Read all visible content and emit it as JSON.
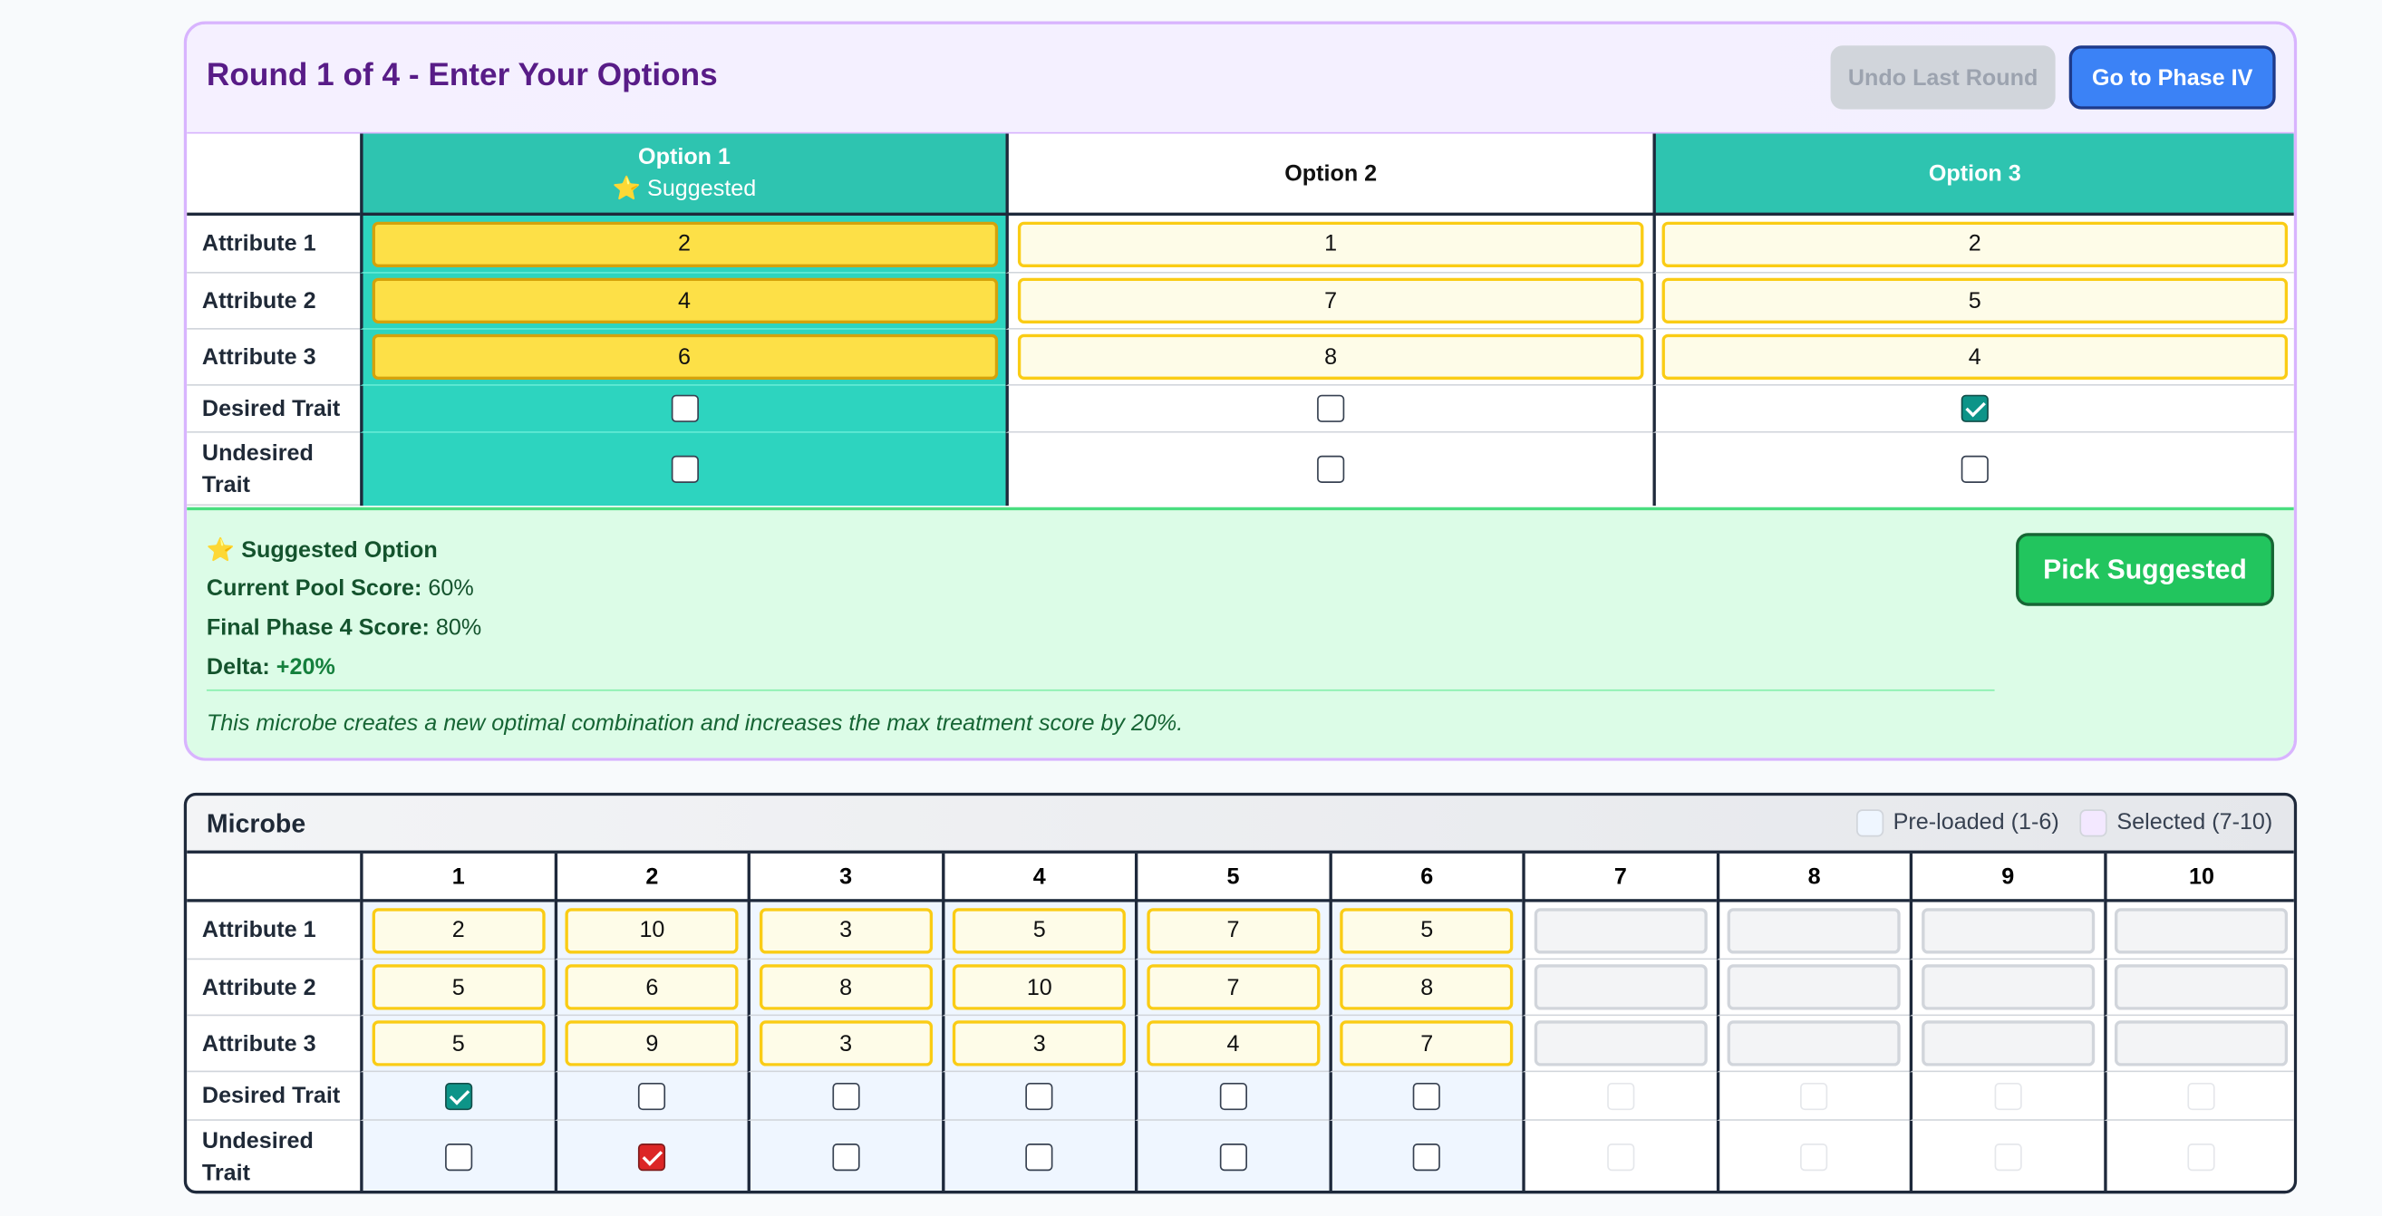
{
  "header": {
    "title": "Round 1 of 4 - Enter Your Options",
    "undo_button": "Undo Last Round",
    "next_button": "Go to Phase IV"
  },
  "options_table": {
    "row_labels": [
      "Attribute 1",
      "Attribute 2",
      "Attribute 3",
      "Desired Trait",
      "Undesired Trait"
    ],
    "options": [
      {
        "name": "Option 1",
        "badge": "⭐ Suggested",
        "header_color": "#2ec4b0",
        "body_color": "#2dd4bf",
        "input_color": "#fde047",
        "values": [
          2,
          4,
          6
        ],
        "desired": false,
        "undesired": false
      },
      {
        "name": "Option 2",
        "header_color": "#ffffff",
        "body_color": "#ffffff",
        "input_color": "#fefce8",
        "values": [
          1,
          7,
          8
        ],
        "desired": false,
        "undesired": false
      },
      {
        "name": "Option 3",
        "header_color": "#2ec4b0",
        "body_color": "#ffffff",
        "input_color": "#fefce8",
        "values": [
          2,
          5,
          4
        ],
        "desired": true,
        "undesired": false
      }
    ]
  },
  "suggestion": {
    "title": "⭐ Suggested Option",
    "lines": [
      {
        "label": "Current Pool Score:",
        "value": "60%"
      },
      {
        "label": "Final Phase 4 Score:",
        "value": "80%"
      },
      {
        "label": "Delta:",
        "value": "+20%"
      }
    ],
    "note": "This microbe creates a new optimal combination and increases the max treatment score by 20%.",
    "button": "Pick Suggested"
  },
  "microbe_table": {
    "title": "Microbe",
    "legend": [
      {
        "label": "Pre-loaded (1-6)",
        "color": "#eff6ff"
      },
      {
        "label": "Selected (7-10)",
        "color": "#f3e8ff"
      }
    ],
    "columns": [
      1,
      2,
      3,
      4,
      5,
      6,
      7,
      8,
      9,
      10
    ],
    "row_labels": [
      "Attribute 1",
      "Attribute 2",
      "Attribute 3",
      "Desired Trait",
      "Undesired Trait"
    ],
    "microbes": [
      {
        "values": [
          2,
          5,
          5
        ],
        "desired": true,
        "undesired": false
      },
      {
        "values": [
          10,
          6,
          9
        ],
        "desired": false,
        "undesired": true
      },
      {
        "values": [
          3,
          8,
          3
        ],
        "desired": false,
        "undesired": false
      },
      {
        "values": [
          5,
          10,
          3
        ],
        "desired": false,
        "undesired": false
      },
      {
        "values": [
          7,
          7,
          4
        ],
        "desired": false,
        "undesired": false
      },
      {
        "values": [
          5,
          8,
          7
        ],
        "desired": false,
        "undesired": false
      }
    ]
  }
}
